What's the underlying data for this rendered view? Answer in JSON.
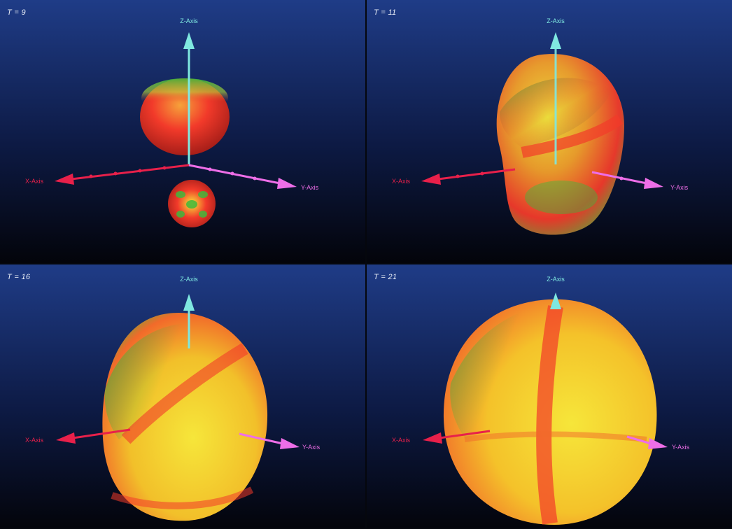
{
  "panels": [
    {
      "time_label": "T = 9",
      "z_axis_label": "Z-Axis",
      "x_axis_label": "X-Axis",
      "y_axis_label": "Y-Axis"
    },
    {
      "time_label": "T = 11",
      "z_axis_label": "Z-Axis",
      "x_axis_label": "X-Axis",
      "y_axis_label": "Y-Axis"
    },
    {
      "time_label": "T = 16",
      "z_axis_label": "Z-Axis",
      "x_axis_label": "X-Axis",
      "y_axis_label": "Y-Axis"
    },
    {
      "time_label": "T = 21",
      "z_axis_label": "Z-Axis",
      "x_axis_label": "X-Axis",
      "y_axis_label": "Y-Axis"
    }
  ],
  "colors": {
    "background_top": "#1f3c87",
    "background_bottom": "#03040a",
    "z_axis": "#7fe8e0",
    "x_axis": "#e8204a",
    "y_axis": "#ee6ee8",
    "surface_red": "#f23a2a",
    "surface_yellow": "#f6e63a",
    "surface_green": "#3fb83c"
  }
}
